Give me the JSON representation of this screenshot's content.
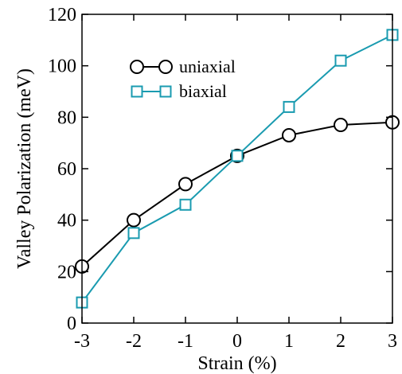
{
  "chart_data": {
    "type": "line",
    "title": "",
    "xlabel": "Strain (%)",
    "ylabel": "Valley Polarization (meV)",
    "xlim": [
      -3,
      3
    ],
    "ylim": [
      0,
      120
    ],
    "x": [
      -3,
      -2,
      -1,
      0,
      1,
      2,
      3
    ],
    "xticks": [
      -3,
      -2,
      -1,
      0,
      1,
      2,
      3
    ],
    "xtick_labels": [
      "-3",
      "-2",
      "-1",
      "0",
      "1",
      "2",
      "3"
    ],
    "yticks": [
      0,
      20,
      40,
      60,
      80,
      100,
      120
    ],
    "ytick_labels": [
      "0",
      "20",
      "40",
      "60",
      "80",
      "100",
      "120"
    ],
    "grid": false,
    "legend_position": "upper-left",
    "series": [
      {
        "name": "uniaxial",
        "marker": "circle",
        "color": "#000000",
        "values": [
          22,
          40,
          54,
          65,
          73,
          77,
          78
        ]
      },
      {
        "name": "biaxial",
        "marker": "square",
        "color": "#1a9bb0",
        "values": [
          8,
          35,
          46,
          65,
          84,
          102,
          112
        ]
      }
    ]
  }
}
